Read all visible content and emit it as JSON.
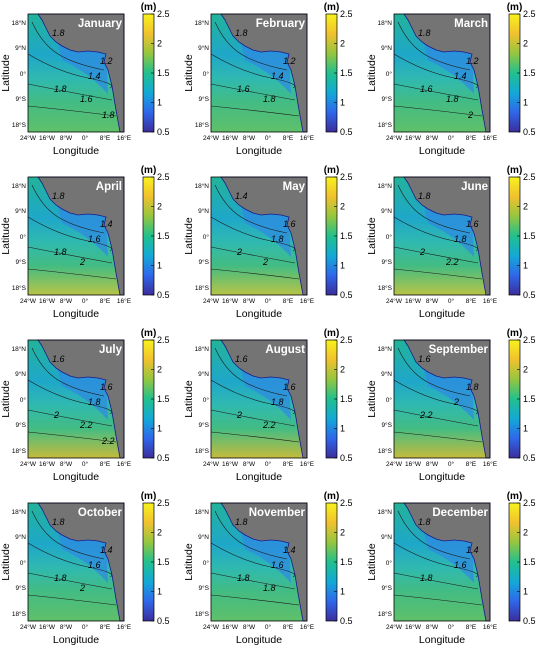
{
  "figure": {
    "colorbar": {
      "unit": "(m)",
      "ticks": [
        "2.5",
        "2",
        "1.5",
        "1",
        "0.5"
      ],
      "colors": [
        "#3b2c9b",
        "#2f67ea",
        "#13a9d6",
        "#22c08d",
        "#95c63f",
        "#f1c12e",
        "#f7f21c"
      ]
    },
    "axes": {
      "xlabel": "Longitude",
      "ylabel": "Latitude",
      "x_ticks": [
        "24°W",
        "16°W",
        "8°W",
        "0°",
        "8°E",
        "16°E"
      ],
      "y_ticks": [
        "18°N",
        "9°N",
        "0°",
        "9°S",
        "18°S"
      ]
    },
    "land_color": "#747474",
    "panels": [
      {
        "month": "January",
        "contours": [
          "1.8",
          "1.2",
          "1.4",
          "1.8",
          "1.6",
          "1.8"
        ]
      },
      {
        "month": "February",
        "contours": [
          "1.8",
          "1.2",
          "1.4",
          "1.6",
          "1.8"
        ]
      },
      {
        "month": "March",
        "contours": [
          "1.8",
          "1.2",
          "1.4",
          "1.6",
          "1.8",
          "2"
        ]
      },
      {
        "month": "April",
        "contours": [
          "1.8",
          "1.4",
          "1.6",
          "1.8",
          "2"
        ]
      },
      {
        "month": "May",
        "contours": [
          "1.4",
          "1.6",
          "1.8",
          "2",
          "2"
        ]
      },
      {
        "month": "June",
        "contours": [
          "1.8",
          "1.6",
          "1.8",
          "2",
          "2.2"
        ]
      },
      {
        "month": "July",
        "contours": [
          "1.6",
          "1.6",
          "1.8",
          "2",
          "2.2",
          "2.2"
        ]
      },
      {
        "month": "August",
        "contours": [
          "1.6",
          "1.6",
          "1.8",
          "2",
          "2.2"
        ]
      },
      {
        "month": "September",
        "contours": [
          "1.6",
          "1.8",
          "2",
          "2.2"
        ]
      },
      {
        "month": "October",
        "contours": [
          "1.8",
          "1.4",
          "1.6",
          "1.8",
          "2"
        ]
      },
      {
        "month": "November",
        "contours": [
          "1.8",
          "1.4",
          "1.6",
          "1.8",
          "1.8"
        ]
      },
      {
        "month": "December",
        "contours": [
          "1.8",
          "1.4",
          "1.6",
          "1.8"
        ]
      }
    ]
  }
}
